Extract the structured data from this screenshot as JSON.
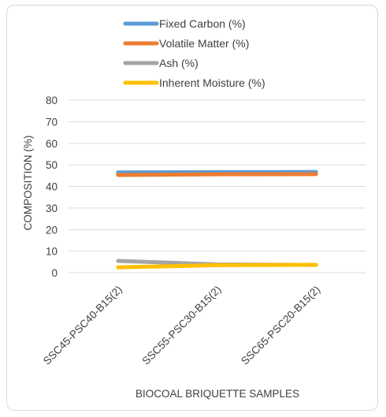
{
  "chart_data": {
    "type": "line",
    "title": "",
    "xlabel": "BIOCOAL BRIQUETTE SAMPLES",
    "ylabel": "COMPOSITION (%)",
    "ylim": [
      0,
      80
    ],
    "yticks": [
      0,
      10,
      20,
      30,
      40,
      50,
      60,
      70,
      80
    ],
    "grid": true,
    "legend_position": "top",
    "categories": [
      "SSC45-PSC40-B15(2)",
      "SSC55-PSC30-B15(2)",
      "SSC65-PSC20-B15(2)"
    ],
    "series": [
      {
        "name": "Fixed Carbon (%)",
        "color": "#5b9bd5",
        "values": [
          46.5,
          46.6,
          46.7
        ]
      },
      {
        "name": "Volatile Matter (%)",
        "color": "#ed7d31",
        "values": [
          45.3,
          45.6,
          45.7
        ]
      },
      {
        "name": "Ash (%)",
        "color": "#a5a5a5",
        "values": [
          5.5,
          3.9,
          3.6
        ]
      },
      {
        "name": "Inherent Moisture (%)",
        "color": "#ffc000",
        "values": [
          2.5,
          3.5,
          3.7
        ]
      }
    ]
  }
}
